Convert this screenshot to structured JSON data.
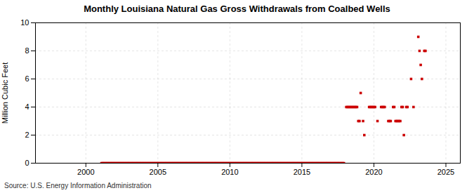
{
  "chart_data": {
    "type": "scatter",
    "title": "Monthly Louisiana Natural Gas Gross Withdrawals from Coalbed Wells",
    "ylabel": "Million Cubic Feet",
    "source": "Source: U.S. Energy Information Administration",
    "xlim": [
      1996.5,
      2026.0
    ],
    "xticks": [
      2000,
      2005,
      2010,
      2015,
      2020,
      2025
    ],
    "ylim": [
      0,
      10
    ],
    "yticks": [
      0,
      2,
      4,
      6,
      8,
      10
    ],
    "grid": true,
    "color": "#cc0000",
    "marker": "square",
    "x": [
      2001.083,
      2001.167,
      2001.25,
      2001.333,
      2001.417,
      2001.5,
      2001.583,
      2001.667,
      2001.75,
      2001.833,
      2001.917,
      2002.0,
      2002.083,
      2002.167,
      2002.25,
      2002.333,
      2002.417,
      2002.5,
      2002.583,
      2002.667,
      2002.75,
      2002.833,
      2002.917,
      2003.0,
      2003.083,
      2003.167,
      2003.25,
      2003.333,
      2003.417,
      2003.5,
      2003.583,
      2003.667,
      2003.75,
      2003.833,
      2003.917,
      2004.0,
      2004.083,
      2004.167,
      2004.25,
      2004.333,
      2004.417,
      2004.5,
      2004.583,
      2004.667,
      2004.75,
      2004.833,
      2004.917,
      2005.0,
      2005.083,
      2005.167,
      2005.25,
      2005.333,
      2005.417,
      2005.5,
      2005.583,
      2005.667,
      2005.75,
      2005.833,
      2005.917,
      2006.0,
      2006.083,
      2006.167,
      2006.25,
      2006.333,
      2006.417,
      2006.5,
      2006.583,
      2006.667,
      2006.75,
      2006.833,
      2006.917,
      2007.0,
      2007.083,
      2007.167,
      2007.25,
      2007.333,
      2007.417,
      2007.5,
      2007.583,
      2007.667,
      2007.75,
      2007.833,
      2007.917,
      2008.0,
      2008.083,
      2008.167,
      2008.25,
      2008.333,
      2008.417,
      2008.5,
      2008.583,
      2008.667,
      2008.75,
      2008.833,
      2008.917,
      2009.0,
      2009.083,
      2009.167,
      2009.25,
      2009.333,
      2009.417,
      2009.5,
      2009.583,
      2009.667,
      2009.75,
      2009.833,
      2009.917,
      2010.0,
      2010.083,
      2010.167,
      2010.25,
      2010.333,
      2010.417,
      2010.5,
      2010.583,
      2010.667,
      2010.75,
      2010.833,
      2010.917,
      2011.0,
      2011.083,
      2011.167,
      2011.25,
      2011.333,
      2011.417,
      2011.5,
      2011.583,
      2011.667,
      2011.75,
      2011.833,
      2011.917,
      2012.0,
      2012.083,
      2012.167,
      2012.25,
      2012.333,
      2012.417,
      2012.5,
      2012.583,
      2012.667,
      2012.75,
      2012.833,
      2012.917,
      2013.0,
      2013.083,
      2013.167,
      2013.25,
      2013.333,
      2013.417,
      2013.5,
      2013.583,
      2013.667,
      2013.75,
      2013.833,
      2013.917,
      2014.0,
      2014.083,
      2014.167,
      2014.25,
      2014.333,
      2014.417,
      2014.5,
      2014.583,
      2014.667,
      2014.75,
      2014.833,
      2014.917,
      2015.0,
      2015.083,
      2015.167,
      2015.25,
      2015.333,
      2015.417,
      2015.5,
      2015.583,
      2015.667,
      2015.75,
      2015.833,
      2015.917,
      2016.0,
      2016.083,
      2016.167,
      2016.25,
      2016.333,
      2016.417,
      2016.5,
      2016.583,
      2016.667,
      2016.75,
      2016.833,
      2016.917,
      2017.0,
      2017.083,
      2017.167,
      2017.25,
      2017.333,
      2017.417,
      2017.5,
      2017.583,
      2017.667,
      2017.75,
      2017.833,
      2017.917,
      2018.083,
      2018.167,
      2018.25,
      2018.333,
      2018.417,
      2018.5,
      2018.583,
      2018.667,
      2018.75,
      2018.833,
      2018.917,
      2019.0,
      2019.083,
      2019.25,
      2019.333,
      2019.667,
      2019.75,
      2019.833,
      2019.917,
      2020.0,
      2020.083,
      2020.25,
      2020.5,
      2020.583,
      2020.667,
      2020.75,
      2021.0,
      2021.083,
      2021.167,
      2021.333,
      2021.417,
      2021.5,
      2021.583,
      2021.667,
      2021.75,
      2021.833,
      2021.917,
      2022.0,
      2022.083,
      2022.25,
      2022.333,
      2022.583,
      2022.75,
      2023.083,
      2023.167,
      2023.25,
      2023.333,
      2023.5,
      2023.583
    ],
    "values": [
      0,
      0,
      0,
      0,
      0,
      0,
      0,
      0,
      0,
      0,
      0,
      0,
      0,
      0,
      0,
      0,
      0,
      0,
      0,
      0,
      0,
      0,
      0,
      0,
      0,
      0,
      0,
      0,
      0,
      0,
      0,
      0,
      0,
      0,
      0,
      0,
      0,
      0,
      0,
      0,
      0,
      0,
      0,
      0,
      0,
      0,
      0,
      0,
      0,
      0,
      0,
      0,
      0,
      0,
      0,
      0,
      0,
      0,
      0,
      0,
      0,
      0,
      0,
      0,
      0,
      0,
      0,
      0,
      0,
      0,
      0,
      0,
      0,
      0,
      0,
      0,
      0,
      0,
      0,
      0,
      0,
      0,
      0,
      0,
      0,
      0,
      0,
      0,
      0,
      0,
      0,
      0,
      0,
      0,
      0,
      0,
      0,
      0,
      0,
      0,
      0,
      0,
      0,
      0,
      0,
      0,
      0,
      0,
      0,
      0,
      0,
      0,
      0,
      0,
      0,
      0,
      0,
      0,
      0,
      0,
      0,
      0,
      0,
      0,
      0,
      0,
      0,
      0,
      0,
      0,
      0,
      0,
      0,
      0,
      0,
      0,
      0,
      0,
      0,
      0,
      0,
      0,
      0,
      0,
      0,
      0,
      0,
      0,
      0,
      0,
      0,
      0,
      0,
      0,
      0,
      0,
      0,
      0,
      0,
      0,
      0,
      0,
      0,
      0,
      0,
      0,
      0,
      0,
      0,
      0,
      0,
      0,
      0,
      0,
      0,
      0,
      0,
      0,
      0,
      0,
      0,
      0,
      0,
      0,
      0,
      0,
      0,
      0,
      0,
      0,
      0,
      0,
      0,
      0,
      0,
      0,
      0,
      0,
      0,
      0,
      0,
      0,
      0,
      4,
      4,
      4,
      4,
      4,
      4,
      4,
      4,
      4,
      4,
      3,
      3,
      5,
      3,
      2,
      4,
      4,
      4,
      4,
      4,
      4,
      3,
      4,
      4,
      4,
      4,
      3,
      3,
      3,
      4,
      4,
      3,
      3,
      3,
      3,
      3,
      4,
      4,
      2,
      4,
      4,
      6,
      4,
      9,
      8,
      7,
      6,
      8,
      8
    ]
  }
}
